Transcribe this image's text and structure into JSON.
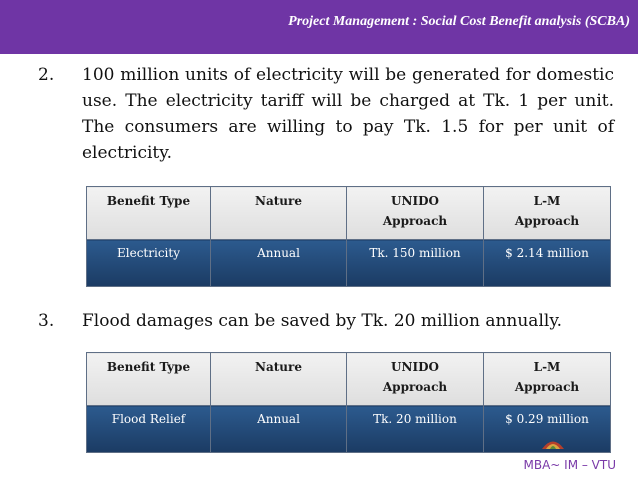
{
  "header": {
    "title": "Project Management : Social Cost Benefit analysis (SCBA)"
  },
  "points": [
    {
      "number": "2.",
      "text": "100 million units of electricity will be generated for domestic use. The electricity tariff will be charged at Tk. 1 per unit. The consumers are willing to pay Tk. 1.5 for per unit of electricity."
    },
    {
      "number": "3.",
      "text": "Flood damages can be saved by Tk. 20 million annually."
    }
  ],
  "tables": [
    {
      "headers": [
        "Benefit Type",
        "Nature",
        "UNIDO Approach",
        "L-M Approach"
      ],
      "row": [
        "Electricity",
        "Annual",
        "Tk. 150 million",
        "$ 2.14 million"
      ]
    },
    {
      "headers": [
        "Benefit Type",
        "Nature",
        "UNIDO Approach",
        "L-M Approach"
      ],
      "row": [
        "Flood Relief",
        "Annual",
        "Tk. 20 million",
        "$ 0.29 million"
      ]
    }
  ],
  "footer": {
    "text": "MBA~ IM – VTU"
  },
  "colors": {
    "header_bg": "#6f35a5",
    "table_cell_bg": "#23497a",
    "footer_text": "#7a3aa8"
  }
}
